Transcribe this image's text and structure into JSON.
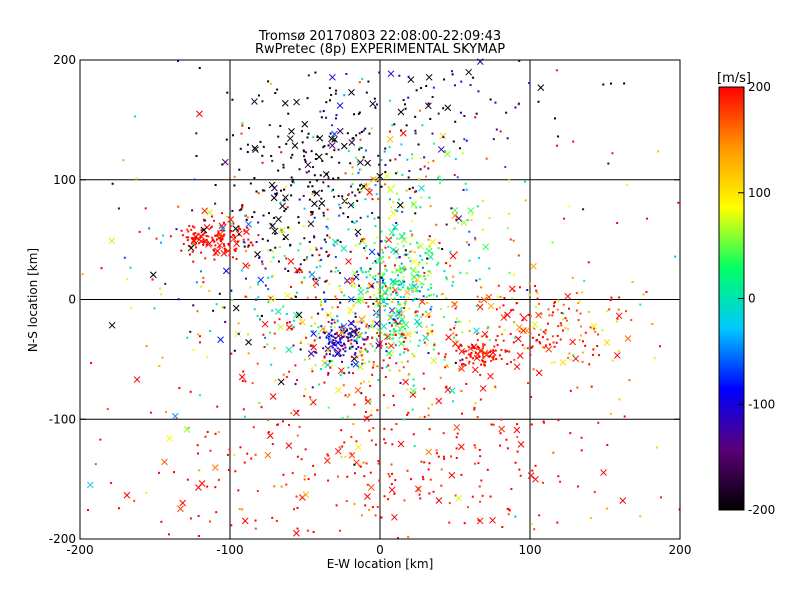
{
  "chart_data": {
    "type": "scatter",
    "title": "Tromsø 20170803 22:08:00-22:09:43",
    "subtitle": "RwPretec (8p) EXPERIMENTAL SKYMAP",
    "xlabel": "E-W location [km]",
    "ylabel": "N-S location [km]",
    "xlim": [
      -200,
      200
    ],
    "ylim": [
      -200,
      200
    ],
    "xticks": [
      -200,
      -100,
      0,
      100,
      200
    ],
    "yticks": [
      -200,
      -100,
      0,
      100,
      200
    ],
    "grid": true,
    "colorbar": {
      "label": "[m/s]",
      "range": [
        -200,
        200
      ],
      "ticks": [
        200,
        100,
        0,
        -100,
        -200
      ],
      "colors": [
        "#000000",
        "#5a0078",
        "#0000ff",
        "#00c8ff",
        "#00ff64",
        "#ffff00",
        "#ff9600",
        "#ff0000"
      ]
    },
    "markers": [
      "dot",
      "cross"
    ],
    "clusters": [
      {
        "x": -110,
        "y": 50,
        "sx": 12,
        "sy": 8,
        "n": 150,
        "v": 200,
        "vs": 10
      },
      {
        "x": -50,
        "y": 100,
        "sx": 30,
        "sy": 35,
        "n": 220,
        "v": -200,
        "vs": 30
      },
      {
        "x": 15,
        "y": 80,
        "sx": 30,
        "sy": 40,
        "n": 150,
        "v": 20,
        "vs": 90
      },
      {
        "x": 15,
        "y": 10,
        "sx": 15,
        "sy": 25,
        "n": 250,
        "v": 20,
        "vs": 50
      },
      {
        "x": -25,
        "y": -35,
        "sx": 8,
        "sy": 8,
        "n": 120,
        "v": -120,
        "vs": 30
      },
      {
        "x": 0,
        "y": -30,
        "sx": 40,
        "sy": 30,
        "n": 280,
        "v": 120,
        "vs": 110
      },
      {
        "x": 65,
        "y": -45,
        "sx": 10,
        "sy": 8,
        "n": 100,
        "v": 200,
        "vs": 20
      },
      {
        "x": 115,
        "y": -20,
        "sx": 25,
        "sy": 18,
        "n": 160,
        "v": 180,
        "vs": 60
      },
      {
        "x": 0,
        "y": -140,
        "sx": 90,
        "sy": 40,
        "n": 300,
        "v": 200,
        "vs": 25
      },
      {
        "x": -60,
        "y": 20,
        "sx": 45,
        "sy": 35,
        "n": 200,
        "v": -50,
        "vs": 160
      },
      {
        "x": 20,
        "y": 160,
        "sx": 60,
        "sy": 25,
        "n": 120,
        "v": -180,
        "vs": 70
      },
      {
        "x": 0,
        "y": 0,
        "sx": 110,
        "sy": 110,
        "n": 300,
        "v": 150,
        "vs": 130
      }
    ]
  }
}
